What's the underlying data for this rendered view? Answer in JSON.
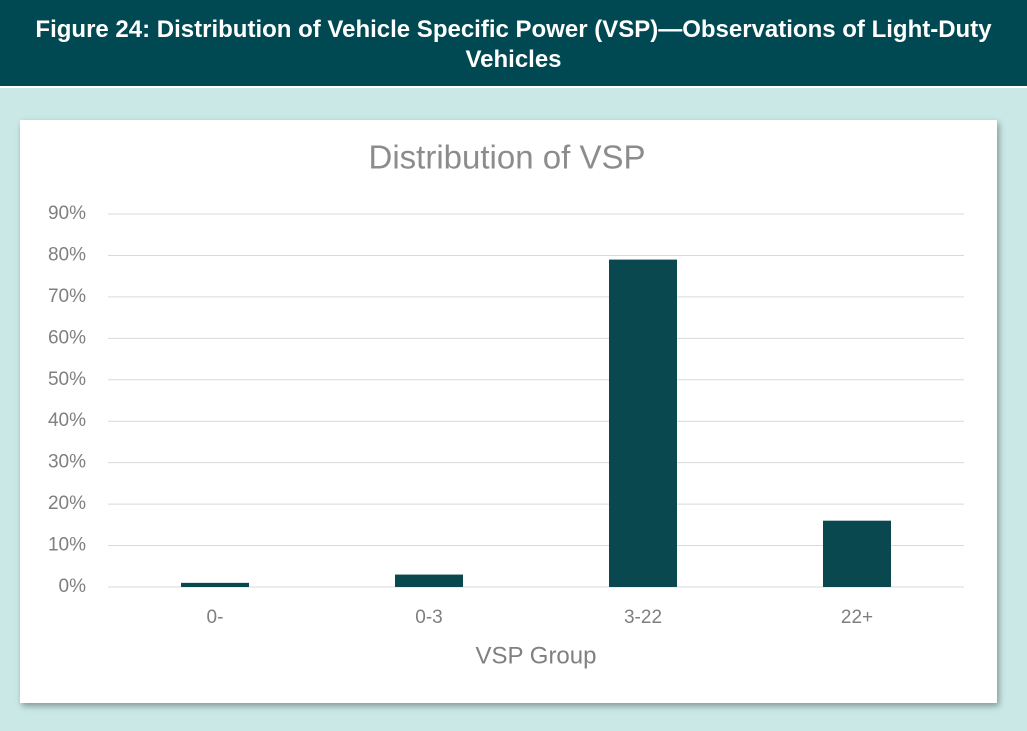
{
  "caption": "Figure 24: Distribution of Vehicle Specific Power (VSP)—Observations of Light-Duty Vehicles",
  "chart_data": {
    "type": "bar",
    "title": "Distribution of VSP",
    "x_label": "VSP Group",
    "categories": [
      "0-",
      "0-3",
      "3-22",
      "22+"
    ],
    "values": [
      1,
      3,
      79,
      16
    ],
    "color": "#0a4850",
    "ylim": [
      0,
      90
    ],
    "yticks": [
      {
        "value": 0,
        "label": "0%"
      },
      {
        "value": 10,
        "label": "10%"
      },
      {
        "value": 20,
        "label": "20%"
      },
      {
        "value": 30,
        "label": "30%"
      },
      {
        "value": 40,
        "label": "40%"
      },
      {
        "value": 50,
        "label": "50%"
      },
      {
        "value": 60,
        "label": "60%"
      },
      {
        "value": 70,
        "label": "70%"
      },
      {
        "value": 80,
        "label": "80%"
      },
      {
        "value": 90,
        "label": "90%"
      }
    ],
    "grid": true
  }
}
